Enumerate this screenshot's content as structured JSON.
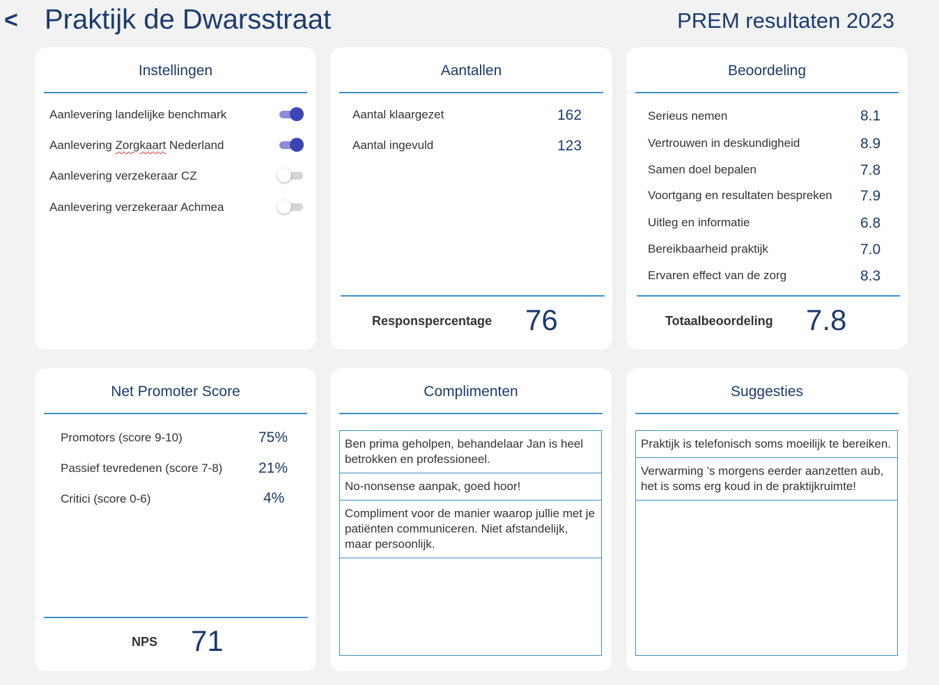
{
  "header": {
    "back": "<",
    "title": "Praktijk de Dwarsstraat",
    "report": "PREM resultaten 2023"
  },
  "settings": {
    "title": "Instellingen",
    "items": [
      {
        "label": "Aanlevering landelijke benchmark",
        "on": true
      },
      {
        "label_pre": "Aanlevering ",
        "label_mid": "Zorgkaart",
        "label_post": " Nederland",
        "on": true
      },
      {
        "label": "Aanlevering verzekeraar CZ",
        "on": false
      },
      {
        "label": "Aanlevering verzekeraar Achmea",
        "on": false
      }
    ]
  },
  "counts": {
    "title": "Aantallen",
    "items": [
      {
        "label": "Aantal klaargezet",
        "value": "162"
      },
      {
        "label": "Aantal ingevuld",
        "value": "123"
      }
    ],
    "total_label": "Responspercentage",
    "total_value": "76"
  },
  "rating": {
    "title": "Beoordeling",
    "items": [
      {
        "label": "Serieus nemen",
        "value": "8.1"
      },
      {
        "label": "Vertrouwen in deskundigheid",
        "value": "8.9"
      },
      {
        "label": "Samen doel bepalen",
        "value": "7.8"
      },
      {
        "label": "Voortgang en resultaten bespreken",
        "value": "7.9"
      },
      {
        "label": "Uitleg en informatie",
        "value": "6.8"
      },
      {
        "label": "Bereikbaarheid praktijk",
        "value": "7.0"
      },
      {
        "label": "Ervaren effect van de zorg",
        "value": "8.3"
      }
    ],
    "total_label": "Totaalbeoordeling",
    "total_value": "7.8"
  },
  "nps": {
    "title": "Net Promoter Score",
    "items": [
      {
        "label": "Promotors (score 9-10)",
        "value": "75%"
      },
      {
        "label": "Passief tevredenen (score 7-8)",
        "value": "21%"
      },
      {
        "label": "Critici (score 0-6)",
        "value": "4%"
      }
    ],
    "total_label": "NPS",
    "total_value": "71"
  },
  "compliments": {
    "title": "Complimenten",
    "items": [
      "Ben prima geholpen, behandelaar Jan is heel betrokken en professioneel.",
      "No-nonsense aanpak, goed hoor!",
      "Compliment voor de manier waarop jullie met je patiënten communiceren. Niet afstandelijk, maar persoonlijk."
    ]
  },
  "suggestions": {
    "title": "Suggesties",
    "items": [
      "Praktijk is telefonisch soms moeilijk te bereiken.",
      "Verwarming ’s morgens eerder aanzetten aub, het is soms erg koud in de praktijkruimte!"
    ]
  },
  "colors": {
    "brand": "#1a3b6e",
    "accent_rule": "#3c8fc4",
    "toggle_on": "#3d44b5",
    "background": "#f2f2f2"
  }
}
